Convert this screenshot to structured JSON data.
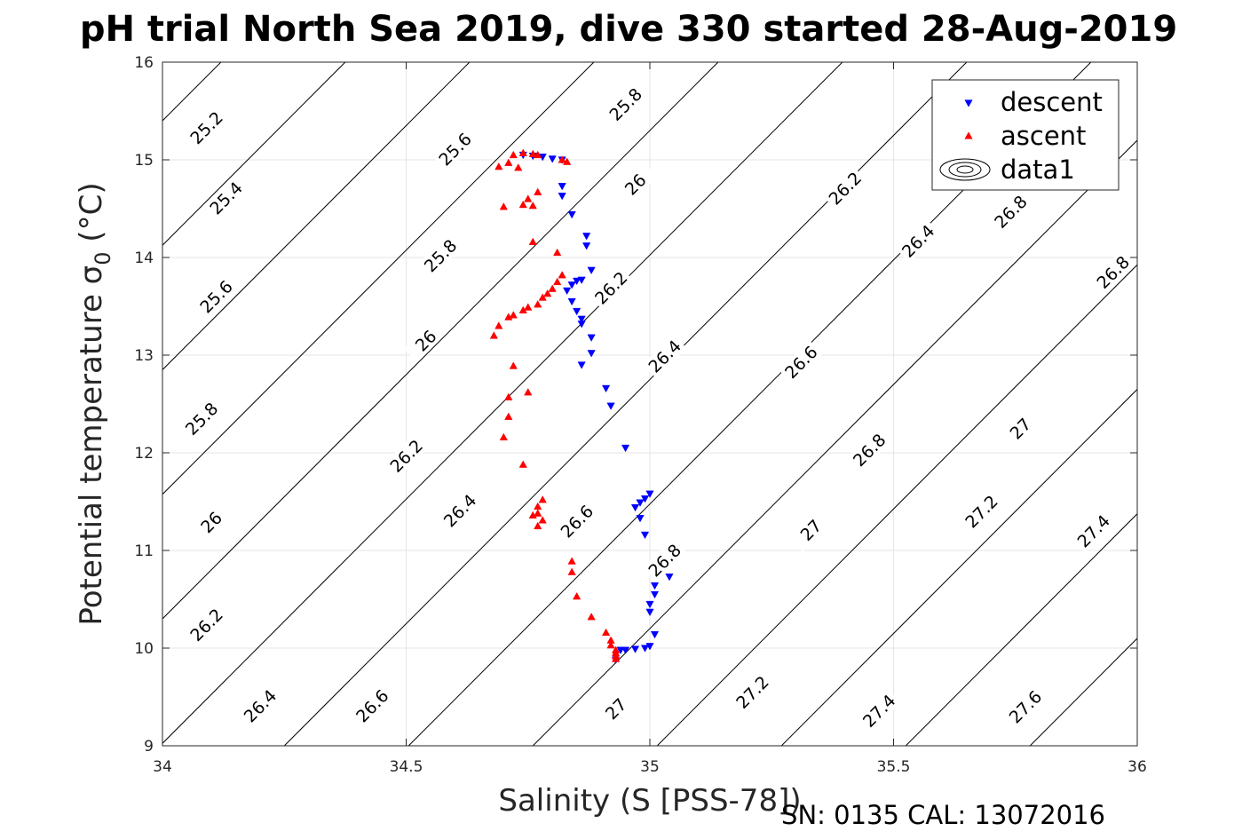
{
  "title": "pH trial North Sea 2019, dive 330 started 28-Aug-2019",
  "footer": "SN: 0135  CAL: 13072016",
  "colors": {
    "descent": "#0000ff",
    "ascent": "#ff0000",
    "grid": "#e6e6e6",
    "contour": "#000000"
  },
  "chart_data": {
    "type": "scatter",
    "xlabel": "Salinity (S [PSS-78])",
    "ylabel": "Potential temperature σ",
    "ylabel_subscript": "0",
    "ylabel_unit": "(°C)",
    "xlim": [
      34,
      36
    ],
    "ylim": [
      9,
      16
    ],
    "xticks": [
      34,
      34.5,
      35,
      35.5,
      36
    ],
    "xtick_labels": [
      "34",
      "34.5",
      "35",
      "35.5",
      "36"
    ],
    "yticks": [
      9,
      10,
      11,
      12,
      13,
      14,
      15,
      16
    ],
    "ytick_labels": [
      "9",
      "10",
      "11",
      "12",
      "13",
      "14",
      "15",
      "16"
    ],
    "grid": true,
    "legend_position": "top-right",
    "legend": [
      "descent",
      "ascent",
      "data1"
    ],
    "series": [
      {
        "name": "descent",
        "marker": "triangle-down",
        "points": [
          [
            34.74,
            15.05
          ],
          [
            34.76,
            15.04
          ],
          [
            34.78,
            15.03
          ],
          [
            34.8,
            15.01
          ],
          [
            34.82,
            15.0
          ],
          [
            34.82,
            14.73
          ],
          [
            34.82,
            14.63
          ],
          [
            34.84,
            14.44
          ],
          [
            34.87,
            14.22
          ],
          [
            34.87,
            14.12
          ],
          [
            34.88,
            13.87
          ],
          [
            34.83,
            13.66
          ],
          [
            34.84,
            13.72
          ],
          [
            34.85,
            13.76
          ],
          [
            34.86,
            13.77
          ],
          [
            34.84,
            13.55
          ],
          [
            34.85,
            13.45
          ],
          [
            34.86,
            13.37
          ],
          [
            34.86,
            13.32
          ],
          [
            34.88,
            13.18
          ],
          [
            34.88,
            13.02
          ],
          [
            34.86,
            12.9
          ],
          [
            34.91,
            12.66
          ],
          [
            34.92,
            12.48
          ],
          [
            34.95,
            12.05
          ],
          [
            34.97,
            11.44
          ],
          [
            34.98,
            11.49
          ],
          [
            34.99,
            11.53
          ],
          [
            35.0,
            11.58
          ],
          [
            34.98,
            11.33
          ],
          [
            34.99,
            11.16
          ],
          [
            35.04,
            10.73
          ],
          [
            35.01,
            10.64
          ],
          [
            35.01,
            10.55
          ],
          [
            35.0,
            10.45
          ],
          [
            35.0,
            10.37
          ],
          [
            35.01,
            10.14
          ],
          [
            35.0,
            10.02
          ],
          [
            34.99,
            10.0
          ],
          [
            34.97,
            9.99
          ],
          [
            34.95,
            9.98
          ],
          [
            34.94,
            9.98
          ],
          [
            34.93,
            9.88
          ]
        ]
      },
      {
        "name": "ascent",
        "marker": "triangle-up",
        "points": [
          [
            34.69,
            14.93
          ],
          [
            34.72,
            15.05
          ],
          [
            34.74,
            15.07
          ],
          [
            34.76,
            15.06
          ],
          [
            34.77,
            15.05
          ],
          [
            34.73,
            14.92
          ],
          [
            34.71,
            14.97
          ],
          [
            34.82,
            15.0
          ],
          [
            34.83,
            14.98
          ],
          [
            34.75,
            14.6
          ],
          [
            34.74,
            14.54
          ],
          [
            34.77,
            14.67
          ],
          [
            34.7,
            14.52
          ],
          [
            34.76,
            14.53
          ],
          [
            34.76,
            14.16
          ],
          [
            34.81,
            14.05
          ],
          [
            34.75,
            13.49
          ],
          [
            34.77,
            13.52
          ],
          [
            34.78,
            13.59
          ],
          [
            34.79,
            13.63
          ],
          [
            34.8,
            13.68
          ],
          [
            34.81,
            13.75
          ],
          [
            34.82,
            13.82
          ],
          [
            34.74,
            13.46
          ],
          [
            34.71,
            13.39
          ],
          [
            34.72,
            13.41
          ],
          [
            34.69,
            13.3
          ],
          [
            34.68,
            13.2
          ],
          [
            34.72,
            12.89
          ],
          [
            34.71,
            12.57
          ],
          [
            34.75,
            12.62
          ],
          [
            34.71,
            12.37
          ],
          [
            34.7,
            12.16
          ],
          [
            34.74,
            11.88
          ],
          [
            34.78,
            11.52
          ],
          [
            34.77,
            11.45
          ],
          [
            34.77,
            11.38
          ],
          [
            34.76,
            11.36
          ],
          [
            34.78,
            11.31
          ],
          [
            34.77,
            11.25
          ],
          [
            34.84,
            10.89
          ],
          [
            34.84,
            10.78
          ],
          [
            34.85,
            10.53
          ],
          [
            34.88,
            10.32
          ],
          [
            34.91,
            10.16
          ],
          [
            34.92,
            10.08
          ],
          [
            34.92,
            10.03
          ],
          [
            34.93,
            9.98
          ],
          [
            34.93,
            9.95
          ],
          [
            34.93,
            9.92
          ],
          [
            34.93,
            9.89
          ]
        ]
      },
      {
        "name": "data1",
        "type": "contour",
        "description_levels": [
          25.2,
          25.4,
          25.6,
          25.8,
          26,
          26.2,
          26.4,
          26.6,
          26.8,
          27,
          27.2,
          27.4,
          27.6
        ],
        "label_instances": [
          {
            "text": "25.2",
            "s": 34.09,
            "t": 15.33
          },
          {
            "text": "25.4",
            "s": 34.13,
            "t": 14.61
          },
          {
            "text": "25.6",
            "s": 34.11,
            "t": 13.6
          },
          {
            "text": "25.8",
            "s": 34.08,
            "t": 12.35
          },
          {
            "text": "26",
            "s": 34.1,
            "t": 11.29
          },
          {
            "text": "26.2",
            "s": 34.09,
            "t": 10.24
          },
          {
            "text": "26.4",
            "s": 34.2,
            "t": 9.41
          },
          {
            "text": "25.6",
            "s": 34.6,
            "t": 15.11
          },
          {
            "text": "25.8",
            "s": 34.57,
            "t": 14.02
          },
          {
            "text": "26",
            "s": 34.54,
            "t": 13.15
          },
          {
            "text": "26.2",
            "s": 34.5,
            "t": 11.97
          },
          {
            "text": "26.4",
            "s": 34.61,
            "t": 11.41
          },
          {
            "text": "26.6",
            "s": 34.43,
            "t": 9.41
          },
          {
            "text": "25.8",
            "s": 34.95,
            "t": 15.57
          },
          {
            "text": "26",
            "s": 34.97,
            "t": 14.75
          },
          {
            "text": "26.2",
            "s": 34.92,
            "t": 13.69
          },
          {
            "text": "26.4",
            "s": 35.03,
            "t": 12.99
          },
          {
            "text": "26.6",
            "s": 34.85,
            "t": 11.3
          },
          {
            "text": "26.8",
            "s": 35.03,
            "t": 10.9
          },
          {
            "text": "27",
            "s": 34.93,
            "t": 9.38
          },
          {
            "text": "26.2",
            "s": 35.4,
            "t": 14.71
          },
          {
            "text": "26.4",
            "s": 35.55,
            "t": 14.17
          },
          {
            "text": "26.6",
            "s": 35.31,
            "t": 12.93
          },
          {
            "text": "26.8",
            "s": 35.45,
            "t": 12.03
          },
          {
            "text": "27",
            "s": 35.33,
            "t": 11.21
          },
          {
            "text": "27.2",
            "s": 35.21,
            "t": 9.55
          },
          {
            "text": "26.8",
            "s": 35.95,
            "t": 13.85
          },
          {
            "text": "26.8",
            "s": 35.74,
            "t": 14.47
          },
          {
            "text": "27",
            "s": 35.76,
            "t": 12.25
          },
          {
            "text": "27.2",
            "s": 35.68,
            "t": 11.4
          },
          {
            "text": "27.4",
            "s": 35.47,
            "t": 9.36
          },
          {
            "text": "27.4",
            "s": 35.91,
            "t": 11.2
          },
          {
            "text": "27.6",
            "s": 35.77,
            "t": 9.4
          }
        ]
      }
    ]
  }
}
